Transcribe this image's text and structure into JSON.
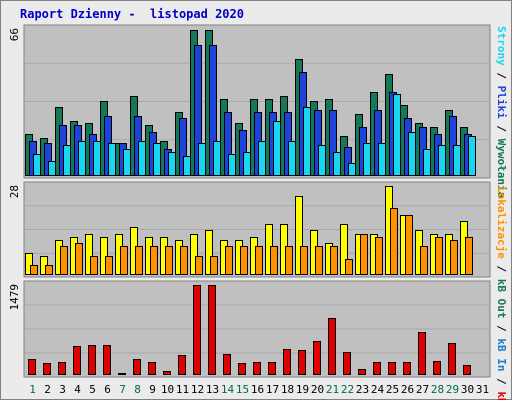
{
  "title": "Raport Dzienny -  listopad 2020",
  "chart_data": [
    {
      "type": "bar",
      "panel": "top",
      "max_label": "66",
      "ylim": [
        0,
        66
      ],
      "categories": [
        "1",
        "2",
        "3",
        "4",
        "5",
        "6",
        "7",
        "8",
        "9",
        "10",
        "11",
        "12",
        "13",
        "14",
        "15",
        "16",
        "17",
        "18",
        "19",
        "20",
        "21",
        "22",
        "23",
        "24",
        "25",
        "26",
        "27",
        "28",
        "29",
        "30",
        "31"
      ],
      "series": [
        {
          "name": "Wywołania",
          "color": "#157858",
          "values": [
            19,
            17,
            31,
            25,
            24,
            34,
            15,
            36,
            23,
            16,
            29,
            66,
            66,
            35,
            24,
            35,
            35,
            36,
            53,
            34,
            35,
            18,
            28,
            38,
            46,
            32,
            24,
            22,
            30,
            22,
            0
          ]
        },
        {
          "name": "Pliki",
          "color": "#1c44dc",
          "values": [
            16,
            15,
            23,
            23,
            19,
            27,
            15,
            27,
            20,
            12,
            26,
            59,
            59,
            29,
            21,
            29,
            29,
            29,
            47,
            30,
            30,
            13,
            22,
            30,
            38,
            26,
            22,
            19,
            27,
            19,
            0
          ]
        },
        {
          "name": "Strony",
          "color": "#19d7f0",
          "values": [
            10,
            7,
            14,
            16,
            16,
            15,
            12,
            16,
            15,
            11,
            9,
            15,
            16,
            10,
            11,
            16,
            25,
            16,
            31,
            14,
            11,
            6,
            15,
            15,
            37,
            20,
            12,
            14,
            14,
            18,
            0
          ]
        }
      ]
    },
    {
      "type": "bar",
      "panel": "middle",
      "max_label": "28",
      "ylim": [
        0,
        28
      ],
      "categories": [
        "1",
        "2",
        "3",
        "4",
        "5",
        "6",
        "7",
        "8",
        "9",
        "10",
        "11",
        "12",
        "13",
        "14",
        "15",
        "16",
        "17",
        "18",
        "19",
        "20",
        "21",
        "22",
        "23",
        "24",
        "25",
        "26",
        "27",
        "28",
        "29",
        "30",
        "31"
      ],
      "series": [
        {
          "name": "Wizyty",
          "color": "#ffff00",
          "values": [
            7,
            6,
            11,
            12,
            13,
            12,
            13,
            15,
            12,
            12,
            11,
            13,
            14,
            11,
            11,
            12,
            16,
            16,
            25,
            14,
            10,
            16,
            13,
            13,
            28,
            19,
            14,
            13,
            13,
            17,
            0
          ]
        },
        {
          "name": "Lokalizacje",
          "color": "#ff9000",
          "values": [
            3,
            3,
            9,
            10,
            6,
            6,
            9,
            9,
            9,
            9,
            9,
            6,
            6,
            9,
            9,
            9,
            9,
            9,
            9,
            9,
            9,
            5,
            13,
            12,
            21,
            19,
            9,
            12,
            11,
            12,
            0
          ]
        }
      ]
    },
    {
      "type": "bar",
      "panel": "bottom",
      "max_label": "1479",
      "ylim": [
        0,
        1479
      ],
      "categories": [
        "1",
        "2",
        "3",
        "4",
        "5",
        "6",
        "7",
        "8",
        "9",
        "10",
        "11",
        "12",
        "13",
        "14",
        "15",
        "16",
        "17",
        "18",
        "19",
        "20",
        "21",
        "22",
        "23",
        "24",
        "25",
        "26",
        "27",
        "28",
        "29",
        "30",
        "31"
      ],
      "series": [
        {
          "name": "kB F",
          "color": "#e00000",
          "values": [
            260,
            200,
            210,
            480,
            500,
            490,
            40,
            260,
            220,
            60,
            330,
            1479,
            1479,
            350,
            200,
            210,
            210,
            420,
            410,
            560,
            940,
            380,
            100,
            210,
            220,
            220,
            700,
            230,
            530,
            160,
            0
          ]
        }
      ],
      "side_labels": [
        "kB F",
        "kB In",
        "kB Out",
        "Lokalizacje"
      ]
    }
  ],
  "legend_top": [
    "Wywołania",
    "Pliki",
    "Strony"
  ],
  "legend_sep": "/",
  "colors": {
    "frame_bg": "#ebebeb",
    "panel_bg": "#c0c0c0",
    "title": "#0000c8",
    "weekday": "#000000",
    "weekend": "#006e3c"
  },
  "weekend_days": [
    "1",
    "7",
    "8",
    "14",
    "15",
    "21",
    "22",
    "28",
    "29"
  ]
}
